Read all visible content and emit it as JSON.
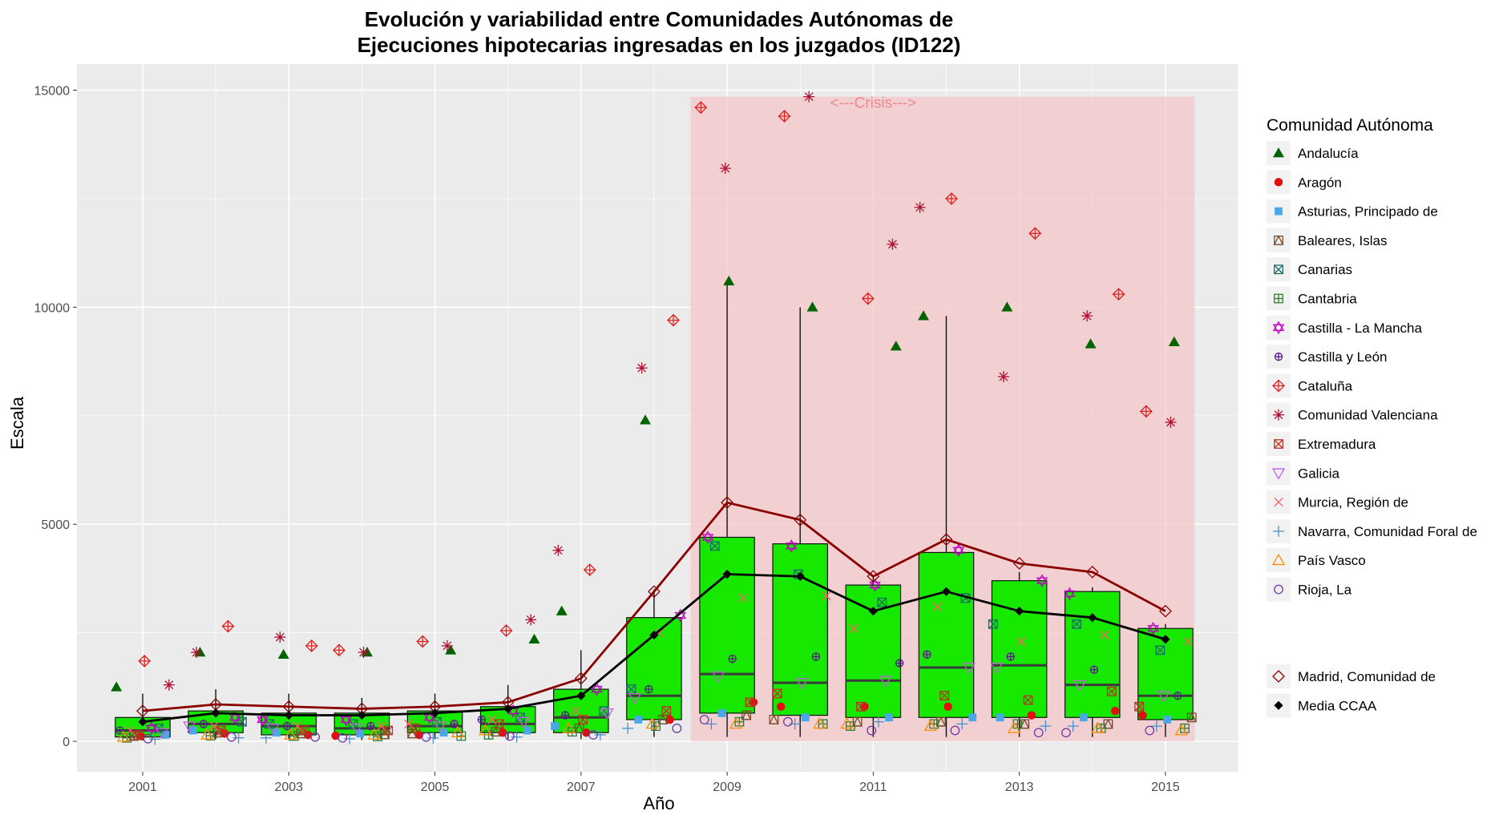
{
  "chart_data": {
    "type": "box",
    "title_lines": [
      "Evolución y variabilidad entre Comunidades Autónomas de",
      "Ejecuciones hipotecarias ingresadas en los juzgados (ID122)"
    ],
    "xlabel": "Año",
    "ylabel": "Escala",
    "xlim": [
      2000.1,
      2016.0
    ],
    "ylim": [
      -700,
      15600
    ],
    "x_ticks": [
      2001,
      2003,
      2005,
      2007,
      2009,
      2011,
      2013,
      2015
    ],
    "y_ticks": [
      0,
      5000,
      10000,
      15000
    ],
    "grid": true,
    "legend_position": "right",
    "legend_title": "Comunidad Autónoma",
    "years": [
      2001,
      2002,
      2003,
      2004,
      2005,
      2006,
      2007,
      2008,
      2009,
      2010,
      2011,
      2012,
      2013,
      2014,
      2015
    ],
    "shaded_region": {
      "x_start": 2008.5,
      "x_end": 2015.4,
      "y_start": 0,
      "y_end": 14850,
      "label": "<---Crisis--->",
      "label_x": 2011.0,
      "label_y": 14850,
      "color": "#f4c7c9"
    },
    "boxes": [
      {
        "year": 2001,
        "q1": 100,
        "median": 250,
        "q3": 550,
        "wmin": 20,
        "wmax": 1100
      },
      {
        "year": 2002,
        "q1": 200,
        "median": 400,
        "q3": 700,
        "wmin": 50,
        "wmax": 1200
      },
      {
        "year": 2003,
        "q1": 150,
        "median": 350,
        "q3": 650,
        "wmin": 30,
        "wmax": 1100
      },
      {
        "year": 2004,
        "q1": 150,
        "median": 300,
        "q3": 650,
        "wmin": 30,
        "wmax": 1000
      },
      {
        "year": 2005,
        "q1": 200,
        "median": 350,
        "q3": 700,
        "wmin": 50,
        "wmax": 1100
      },
      {
        "year": 2006,
        "q1": 200,
        "median": 400,
        "q3": 800,
        "wmin": 50,
        "wmax": 1300
      },
      {
        "year": 2007,
        "q1": 200,
        "median": 550,
        "q3": 1200,
        "wmin": 50,
        "wmax": 2100
      },
      {
        "year": 2008,
        "q1": 500,
        "median": 1050,
        "q3": 2850,
        "wmin": 100,
        "wmax": 3500
      },
      {
        "year": 2009,
        "q1": 650,
        "median": 1550,
        "q3": 4700,
        "wmin": 100,
        "wmax": 10600
      },
      {
        "year": 2010,
        "q1": 600,
        "median": 1350,
        "q3": 4550,
        "wmin": 100,
        "wmax": 10000
      },
      {
        "year": 2011,
        "q1": 550,
        "median": 1400,
        "q3": 3600,
        "wmin": 100,
        "wmax": 3800
      },
      {
        "year": 2012,
        "q1": 550,
        "median": 1700,
        "q3": 4350,
        "wmin": 100,
        "wmax": 9800
      },
      {
        "year": 2013,
        "q1": 550,
        "median": 1750,
        "q3": 3700,
        "wmin": 100,
        "wmax": 3900
      },
      {
        "year": 2014,
        "q1": 550,
        "median": 1300,
        "q3": 3450,
        "wmin": 100,
        "wmax": 3550
      },
      {
        "year": 2015,
        "q1": 500,
        "median": 1050,
        "q3": 2600,
        "wmin": 100,
        "wmax": 2700
      }
    ],
    "lines": [
      {
        "name": "Madrid, Comunidad de",
        "color": "#8b0000",
        "marker": "diamond-open",
        "values": [
          700,
          850,
          800,
          750,
          800,
          900,
          1450,
          3450,
          5500,
          5100,
          3800,
          4650,
          4100,
          3900,
          3000
        ]
      },
      {
        "name": "Media CCAA",
        "color": "#000000",
        "marker": "diamond-filled",
        "values": [
          450,
          650,
          600,
          600,
          650,
          750,
          1050,
          2450,
          3850,
          3800,
          3000,
          3450,
          3000,
          2850,
          2350
        ]
      }
    ],
    "series": [
      {
        "name": "Andalucía",
        "marker": "triangle-filled",
        "color": "#006400",
        "values": [
          1250,
          2050,
          2000,
          2050,
          2100,
          2350,
          3000,
          7400,
          10600,
          10000,
          9100,
          9800,
          10000,
          9150,
          9200
        ]
      },
      {
        "name": "Aragón",
        "marker": "circle-filled",
        "color": "#e01010",
        "values": [
          120,
          180,
          150,
          130,
          150,
          200,
          200,
          500,
          900,
          800,
          800,
          800,
          600,
          700,
          600
        ]
      },
      {
        "name": "Asturias, Principado de",
        "marker": "square-filled",
        "color": "#4aa8e8",
        "values": [
          150,
          250,
          200,
          180,
          200,
          250,
          350,
          500,
          650,
          550,
          550,
          550,
          550,
          550,
          500
        ]
      },
      {
        "name": "Baleares, Islas",
        "marker": "square-triangle",
        "color": "#7a4a2a",
        "values": [
          120,
          200,
          180,
          160,
          180,
          220,
          300,
          500,
          600,
          500,
          450,
          450,
          400,
          400,
          550
        ]
      },
      {
        "name": "Canarias",
        "marker": "square-x",
        "color": "#1b6b6b",
        "values": [
          300,
          450,
          400,
          400,
          450,
          550,
          700,
          1200,
          4500,
          3850,
          3200,
          3300,
          2700,
          2700,
          2100
        ]
      },
      {
        "name": "Cantabria",
        "marker": "square-plus",
        "color": "#2e7d32",
        "values": [
          80,
          130,
          120,
          110,
          120,
          150,
          220,
          350,
          450,
          400,
          350,
          400,
          400,
          300,
          300
        ]
      },
      {
        "name": "Castilla - La Mancha",
        "marker": "star-of-david",
        "color": "#c000c0",
        "values": [
          300,
          550,
          500,
          500,
          550,
          700,
          1200,
          2900,
          4700,
          4500,
          3600,
          4400,
          3700,
          3400,
          2600
        ]
      },
      {
        "name": "Castilla y León",
        "marker": "circle-plus",
        "color": "#5a1a8a",
        "values": [
          250,
          400,
          350,
          350,
          400,
          500,
          600,
          1200,
          1900,
          1950,
          1800,
          2000,
          1950,
          1650,
          1050
        ]
      },
      {
        "name": "Cataluña",
        "marker": "circle-plus-open",
        "color": "#e02020",
        "values": [
          1850,
          2650,
          2200,
          2100,
          2300,
          2550,
          3950,
          9700,
          14600,
          14400,
          10200,
          12500,
          11700,
          10300,
          7600
        ]
      },
      {
        "name": "Comunidad Valenciana",
        "marker": "asterisk",
        "color": "#b01030",
        "values": [
          1300,
          2050,
          2400,
          2050,
          2200,
          2800,
          4400,
          8600,
          13200,
          14850,
          11450,
          12300,
          8400,
          9800,
          7350
        ]
      },
      {
        "name": "Extremadura",
        "marker": "square-x-open",
        "color": "#c03020",
        "values": [
          150,
          250,
          250,
          250,
          300,
          400,
          500,
          700,
          900,
          1100,
          800,
          1050,
          950,
          1150,
          800
        ]
      },
      {
        "name": "Galicia",
        "marker": "triangle-down-open",
        "color": "#c060e0",
        "values": [
          200,
          350,
          300,
          300,
          350,
          450,
          650,
          1000,
          1500,
          1350,
          1400,
          1700,
          1700,
          1300,
          1050
        ]
      },
      {
        "name": "Murcia, Región de",
        "marker": "x",
        "color": "#ff6060",
        "values": [
          250,
          350,
          350,
          350,
          400,
          500,
          700,
          2500,
          3300,
          3350,
          2600,
          3100,
          2300,
          2450,
          2300
        ]
      },
      {
        "name": "Navarra, Comunidad Foral de",
        "marker": "plus",
        "color": "#4a90c8",
        "values": [
          50,
          80,
          80,
          60,
          80,
          100,
          150,
          300,
          400,
          400,
          450,
          400,
          350,
          350,
          350
        ]
      },
      {
        "name": "País Vasco",
        "marker": "triangle-open",
        "color": "#ff8c00",
        "values": [
          100,
          150,
          150,
          150,
          200,
          250,
          300,
          400,
          400,
          400,
          400,
          350,
          300,
          300,
          250
        ]
      },
      {
        "name": "Rioja, La",
        "marker": "circle-open",
        "color": "#6a3aa8",
        "values": [
          60,
          100,
          100,
          80,
          100,
          120,
          150,
          300,
          500,
          450,
          250,
          250,
          200,
          200,
          250
        ]
      }
    ]
  }
}
